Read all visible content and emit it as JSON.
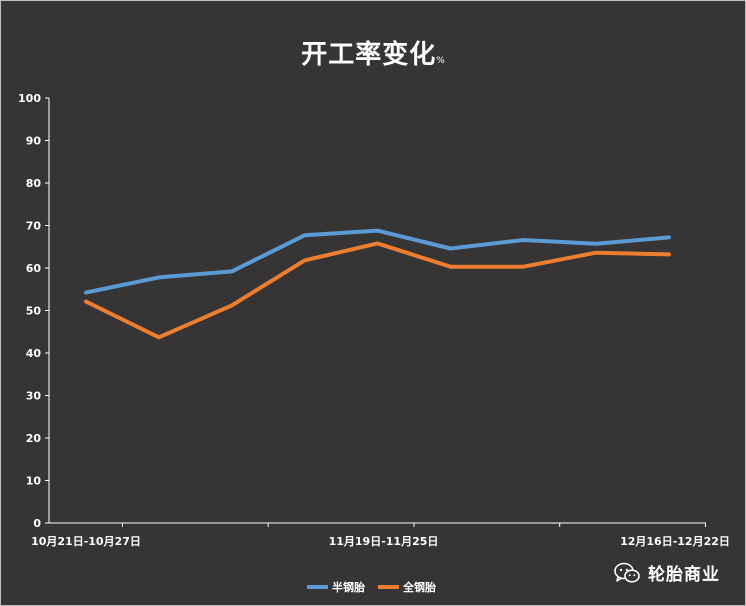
{
  "chart_data": {
    "type": "line",
    "title": "开工率变化",
    "title_unit": "%",
    "ylim": [
      0,
      100
    ],
    "yticks": [
      0,
      10,
      20,
      30,
      40,
      50,
      60,
      70,
      80,
      90,
      100
    ],
    "x_tick_labels": [
      {
        "index": 0,
        "label": "10月21日-10月27日"
      },
      {
        "index": 4,
        "label": "11月19日-11月25日"
      },
      {
        "index": 8,
        "label": "12月16日-12月22日"
      }
    ],
    "n_points": 9,
    "series": [
      {
        "name": "半钢胎",
        "color": "#5b9bd5",
        "values": [
          54.2,
          57.8,
          59.2,
          67.7,
          68.8,
          64.6,
          66.6,
          65.7,
          67.2
        ]
      },
      {
        "name": "全钢胎",
        "color": "#ed7d31",
        "values": [
          52.1,
          43.7,
          51.2,
          61.8,
          65.8,
          60.3,
          60.3,
          63.6,
          63.2
        ]
      }
    ],
    "legend_position": "bottom-center"
  },
  "watermark": {
    "text": "轮胎商业",
    "icon": "wechat-icon"
  },
  "colors": {
    "background": "#363434",
    "text": "#ffffff",
    "axis": "#ffffff"
  }
}
